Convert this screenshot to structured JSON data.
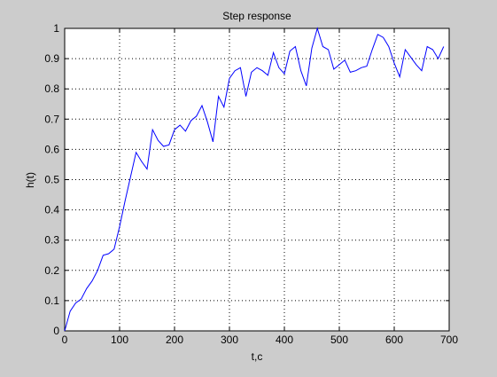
{
  "chart_data": {
    "type": "line",
    "title": "Step response",
    "xlabel": "t,c",
    "ylabel": "h(t)",
    "xlim": [
      0,
      700
    ],
    "ylim": [
      0,
      1
    ],
    "xticks": [
      0,
      100,
      200,
      300,
      400,
      500,
      600,
      700
    ],
    "yticks": [
      0,
      0.1,
      0.2,
      0.3,
      0.4,
      0.5,
      0.6,
      0.7,
      0.8,
      0.9,
      1
    ],
    "grid": true,
    "series": [
      {
        "color": "#0000ff",
        "x": [
          0,
          10,
          20,
          30,
          40,
          50,
          60,
          70,
          80,
          90,
          100,
          110,
          120,
          130,
          140,
          150,
          160,
          170,
          180,
          190,
          200,
          210,
          220,
          230,
          240,
          250,
          260,
          270,
          280,
          290,
          300,
          310,
          320,
          330,
          340,
          350,
          360,
          370,
          380,
          390,
          400,
          410,
          420,
          430,
          440,
          450,
          460,
          470,
          480,
          490,
          500,
          510,
          520,
          530,
          540,
          550,
          560,
          570,
          580,
          590,
          600,
          610,
          620,
          630,
          640,
          650,
          660,
          670,
          680,
          690
        ],
        "y": [
          0.0,
          0.065,
          0.092,
          0.105,
          0.14,
          0.165,
          0.2,
          0.25,
          0.255,
          0.27,
          0.345,
          0.43,
          0.51,
          0.59,
          0.56,
          0.535,
          0.665,
          0.63,
          0.61,
          0.615,
          0.665,
          0.68,
          0.66,
          0.695,
          0.71,
          0.745,
          0.69,
          0.625,
          0.775,
          0.74,
          0.835,
          0.86,
          0.87,
          0.775,
          0.855,
          0.87,
          0.86,
          0.845,
          0.92,
          0.87,
          0.85,
          0.925,
          0.94,
          0.86,
          0.81,
          0.935,
          1.0,
          0.94,
          0.93,
          0.865,
          0.88,
          0.895,
          0.855,
          0.86,
          0.87,
          0.875,
          0.93,
          0.98,
          0.97,
          0.94,
          0.885,
          0.84,
          0.93,
          0.905,
          0.88,
          0.86,
          0.94,
          0.93,
          0.9,
          0.94
        ]
      }
    ]
  }
}
